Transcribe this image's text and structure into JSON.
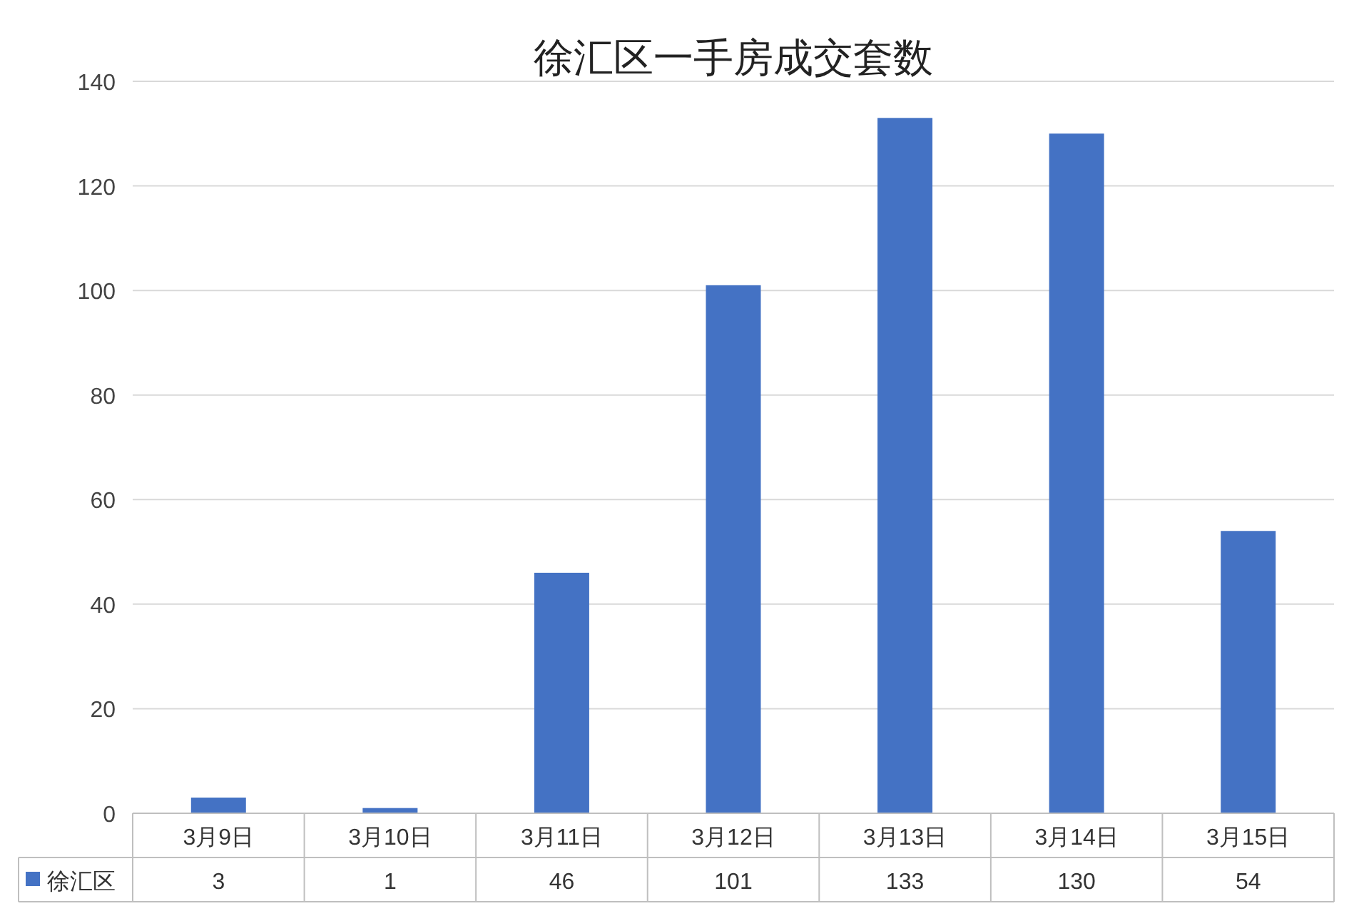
{
  "chart_data": {
    "type": "bar",
    "title": "徐汇区一手房成交套数",
    "categories": [
      "3月9日",
      "3月10日",
      "3月11日",
      "3月12日",
      "3月13日",
      "3月14日",
      "3月15日"
    ],
    "series": [
      {
        "name": "徐汇区",
        "color": "#4472c4",
        "values": [
          3,
          1,
          46,
          101,
          133,
          130,
          54
        ]
      }
    ],
    "ylim": [
      0,
      140
    ],
    "yticks": [
      0,
      20,
      40,
      60,
      80,
      100,
      120,
      140
    ],
    "grid": "y",
    "data_labels": true,
    "legend": "bottom left"
  }
}
